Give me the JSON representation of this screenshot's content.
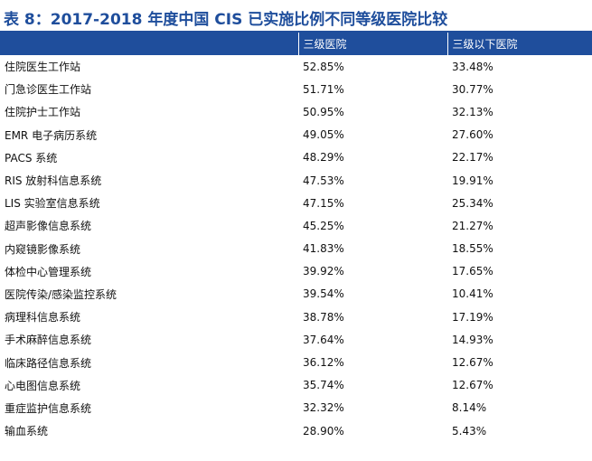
{
  "title": "表 8：2017-2018 年度中国 CIS 已实施比例不同等级医院比较",
  "columns": [
    "",
    "三级医院",
    "三级以下医院"
  ],
  "rows": [
    {
      "name": "住院医生工作站",
      "tier3": "52.85%",
      "below": "33.48%"
    },
    {
      "name": "门急诊医生工作站",
      "tier3": "51.71%",
      "below": "30.77%"
    },
    {
      "name": "住院护士工作站",
      "tier3": "50.95%",
      "below": "32.13%"
    },
    {
      "name": "EMR 电子病历系统",
      "tier3": "49.05%",
      "below": "27.60%"
    },
    {
      "name": "PACS 系统",
      "tier3": "48.29%",
      "below": "22.17%"
    },
    {
      "name": "RIS 放射科信息系统",
      "tier3": "47.53%",
      "below": "19.91%"
    },
    {
      "name": "LIS 实验室信息系统",
      "tier3": "47.15%",
      "below": "25.34%"
    },
    {
      "name": "超声影像信息系统",
      "tier3": "45.25%",
      "below": "21.27%"
    },
    {
      "name": "内窥镜影像系统",
      "tier3": "41.83%",
      "below": "18.55%"
    },
    {
      "name": "体检中心管理系统",
      "tier3": "39.92%",
      "below": "17.65%"
    },
    {
      "name": "医院传染/感染监控系统",
      "tier3": "39.54%",
      "below": "10.41%"
    },
    {
      "name": "病理科信息系统",
      "tier3": "38.78%",
      "below": "17.19%"
    },
    {
      "name": "手术麻醉信息系统",
      "tier3": "37.64%",
      "below": "14.93%"
    },
    {
      "name": "临床路径信息系统",
      "tier3": "36.12%",
      "below": "12.67%"
    },
    {
      "name": "心电图信息系统",
      "tier3": "35.74%",
      "below": "12.67%"
    },
    {
      "name": "重症监护信息系统",
      "tier3": "32.32%",
      "below": "8.14%"
    },
    {
      "name": "输血系统",
      "tier3": "28.90%",
      "below": "5.43%"
    }
  ]
}
